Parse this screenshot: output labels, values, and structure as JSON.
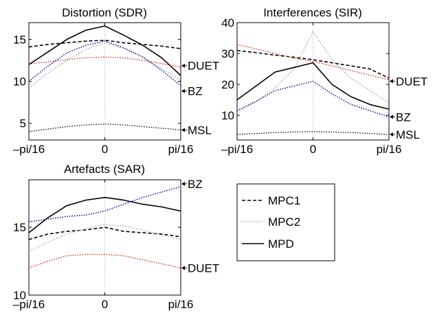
{
  "chart_data": [
    {
      "type": "line",
      "title": "Distortion (SDR)",
      "xlabel": "",
      "ylabel": "",
      "x_ticks": [
        "–pi/16",
        "0",
        "pi/16"
      ],
      "y_ticks": [
        5,
        10,
        15
      ],
      "ylim": [
        3,
        17
      ],
      "x": [
        -4,
        -3,
        -2,
        -1,
        0,
        1,
        2,
        3,
        4
      ],
      "series": [
        {
          "name": "MPC1",
          "values": [
            14.1,
            14.4,
            14.6,
            14.8,
            14.9,
            14.6,
            14.4,
            14.2,
            13.9
          ]
        },
        {
          "name": "MPC2",
          "values": [
            9.2,
            11.0,
            12.5,
            13.8,
            14.6,
            13.9,
            12.9,
            11.5,
            10.1
          ]
        },
        {
          "name": "MPD",
          "values": [
            12.0,
            13.5,
            15.0,
            16.1,
            16.6,
            15.5,
            14.3,
            12.8,
            10.7
          ]
        },
        {
          "name": "DUET",
          "values": [
            12.1,
            12.3,
            12.6,
            12.8,
            12.9,
            12.8,
            12.5,
            12.1,
            11.7
          ]
        },
        {
          "name": "BZ",
          "values": [
            10.0,
            11.8,
            13.4,
            14.3,
            14.8,
            14.0,
            12.9,
            11.3,
            9.5
          ]
        },
        {
          "name": "MSL",
          "values": [
            4.0,
            4.3,
            4.6,
            4.8,
            4.9,
            4.8,
            4.6,
            4.4,
            4.2
          ]
        }
      ],
      "annotations": [
        "DUET",
        "BZ",
        "MSL"
      ],
      "grid": false,
      "reference_line": "0"
    },
    {
      "type": "line",
      "title": "Interferences (SIR)",
      "xlabel": "",
      "ylabel": "",
      "x_ticks": [
        "–pi/16",
        "0",
        "pi/16"
      ],
      "y_ticks": [
        10,
        20,
        30,
        40
      ],
      "ylim": [
        2,
        40
      ],
      "x": [
        -4,
        -3,
        -2,
        -1,
        0,
        1,
        2,
        3,
        4
      ],
      "series": [
        {
          "name": "MPC1",
          "values": [
            31.0,
            30.3,
            29.5,
            28.8,
            28.0,
            27.0,
            26.0,
            25.0,
            22.0
          ]
        },
        {
          "name": "MPC2",
          "values": [
            11.0,
            14.5,
            19.0,
            25.0,
            37.0,
            28.0,
            22.0,
            18.0,
            14.0
          ]
        },
        {
          "name": "MPD",
          "values": [
            15.0,
            19.5,
            24.0,
            25.5,
            27.0,
            20.0,
            16.0,
            13.5,
            12.0
          ]
        },
        {
          "name": "DUET",
          "values": [
            33.0,
            31.5,
            30.0,
            28.5,
            27.5,
            26.0,
            24.5,
            23.0,
            21.5
          ]
        },
        {
          "name": "BZ",
          "values": [
            11.5,
            14.5,
            18.0,
            19.5,
            21.0,
            17.0,
            13.5,
            11.5,
            9.5
          ]
        },
        {
          "name": "MSL",
          "values": [
            3.8,
            4.1,
            4.4,
            4.6,
            4.7,
            4.6,
            4.4,
            4.1,
            3.8
          ]
        }
      ],
      "annotations": [
        "DUET",
        "BZ",
        "MSL"
      ],
      "grid": false,
      "reference_line": "0"
    },
    {
      "type": "line",
      "title": "Artefacts (SAR)",
      "xlabel": "",
      "ylabel": "",
      "x_ticks": [
        "–pi/16",
        "0",
        "pi/16"
      ],
      "y_ticks": [
        10,
        15
      ],
      "ylim": [
        10,
        18.5
      ],
      "x": [
        -4,
        -3,
        -2,
        -1,
        0,
        1,
        2,
        3,
        4
      ],
      "series": [
        {
          "name": "MPC1",
          "values": [
            14.1,
            14.5,
            14.7,
            14.8,
            15.0,
            14.7,
            14.6,
            14.5,
            14.3
          ]
        },
        {
          "name": "MPC2",
          "values": [
            13.2,
            13.9,
            14.5,
            14.9,
            15.2,
            15.1,
            14.8,
            14.4,
            14.1
          ]
        },
        {
          "name": "MPD",
          "values": [
            14.6,
            15.7,
            16.6,
            17.0,
            17.2,
            17.0,
            16.7,
            16.5,
            16.2
          ]
        },
        {
          "name": "DUET",
          "values": [
            12.0,
            12.5,
            12.9,
            13.0,
            13.0,
            12.9,
            12.6,
            12.3,
            12.0
          ]
        },
        {
          "name": "BZ",
          "values": [
            15.4,
            15.6,
            15.8,
            15.9,
            16.2,
            16.7,
            17.2,
            17.6,
            18.0
          ]
        }
      ],
      "annotations": [
        "BZ",
        "DUET"
      ],
      "grid": false,
      "reference_line": "0"
    }
  ],
  "legend": {
    "entries": [
      {
        "label": "MPC1",
        "style": "dashed",
        "color": "#000000"
      },
      {
        "label": "MPC2",
        "style": "dotted",
        "color": "#999999"
      },
      {
        "label": "MPD",
        "style": "solid",
        "color": "#000000"
      }
    ],
    "placement": "bottom-right"
  },
  "colors": {
    "MPC1": "#000000",
    "MPC2": "#999999",
    "MPD": "#000000",
    "DUET": "#cc2200",
    "BZ": "#0000aa",
    "MSL": "#000000",
    "reference": "#aaaaaa"
  }
}
